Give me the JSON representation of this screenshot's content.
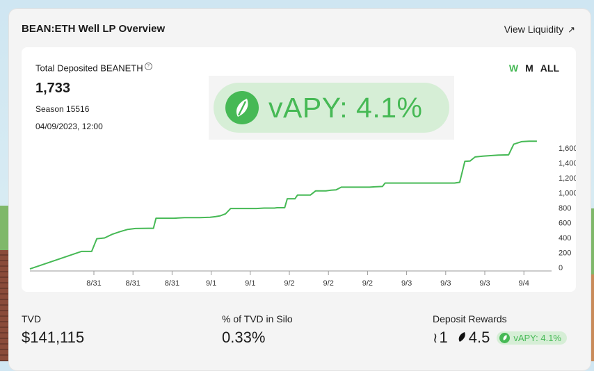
{
  "card": {
    "title": "BEAN:ETH Well LP Overview",
    "view_link": "View Liquidity",
    "view_link_icon": "arrow-up-right-icon"
  },
  "metric": {
    "label": "Total Deposited BEANETH",
    "value": "1,733",
    "season": "Season 15516",
    "date": "04/09/2023, 12:00"
  },
  "vapy": {
    "text": "vAPY: 4.1%"
  },
  "range_tabs": [
    {
      "label": "W",
      "active": true
    },
    {
      "label": "M",
      "active": false
    },
    {
      "label": "ALL",
      "active": false
    }
  ],
  "colors": {
    "accent": "#46b955",
    "accent_light": "#d6eed6"
  },
  "chart_data": {
    "type": "line",
    "title": "",
    "xlabel": "",
    "ylabel": "",
    "x_tick_labels": [
      "8/31",
      "8/31",
      "8/31",
      "9/1",
      "9/1",
      "9/2",
      "9/2",
      "9/2",
      "9/3",
      "9/3",
      "9/3",
      "9/4"
    ],
    "y_ticks": [
      0,
      200,
      400,
      600,
      800,
      "1,000",
      "1,200",
      "1,400",
      "1,600"
    ],
    "ylim": [
      0,
      1700
    ],
    "grid": false,
    "series": [
      {
        "values": [
          [
            0,
            -20
          ],
          [
            0.1,
            215
          ],
          [
            0.12,
            215
          ],
          [
            0.13,
            385
          ],
          [
            0.145,
            395
          ],
          [
            0.16,
            445
          ],
          [
            0.175,
            480
          ],
          [
            0.19,
            510
          ],
          [
            0.205,
            522
          ],
          [
            0.23,
            525
          ],
          [
            0.24,
            525
          ],
          [
            0.245,
            660
          ],
          [
            0.28,
            660
          ],
          [
            0.3,
            667
          ],
          [
            0.33,
            667
          ],
          [
            0.35,
            672
          ],
          [
            0.36,
            680
          ],
          [
            0.37,
            692
          ],
          [
            0.38,
            718
          ],
          [
            0.39,
            790
          ],
          [
            0.44,
            790
          ],
          [
            0.455,
            795
          ],
          [
            0.475,
            795
          ],
          [
            0.48,
            800
          ],
          [
            0.495,
            800
          ],
          [
            0.5,
            920
          ],
          [
            0.515,
            920
          ],
          [
            0.52,
            970
          ],
          [
            0.545,
            970
          ],
          [
            0.555,
            1025
          ],
          [
            0.575,
            1025
          ],
          [
            0.585,
            1035
          ],
          [
            0.595,
            1040
          ],
          [
            0.605,
            1075
          ],
          [
            0.62,
            1075
          ],
          [
            0.66,
            1075
          ],
          [
            0.67,
            1080
          ],
          [
            0.685,
            1085
          ],
          [
            0.69,
            1130
          ],
          [
            0.72,
            1130
          ],
          [
            0.825,
            1130
          ],
          [
            0.835,
            1140
          ],
          [
            0.845,
            1420
          ],
          [
            0.855,
            1425
          ],
          [
            0.865,
            1480
          ],
          [
            0.88,
            1490
          ],
          [
            0.9,
            1500
          ],
          [
            0.91,
            1505
          ],
          [
            0.93,
            1508
          ],
          [
            0.94,
            1650
          ],
          [
            0.955,
            1685
          ],
          [
            0.97,
            1690
          ],
          [
            0.985,
            1690
          ]
        ]
      }
    ]
  },
  "stats": {
    "tvd": {
      "label": "TVD",
      "value": "$141,115"
    },
    "silo": {
      "label": "% of TVD in Silo",
      "value": "0.33%"
    },
    "rewards": {
      "label": "Deposit Rewards",
      "stalk_value": "1",
      "seed_value": "4.5",
      "pill": "vAPY: 4.1%"
    }
  }
}
